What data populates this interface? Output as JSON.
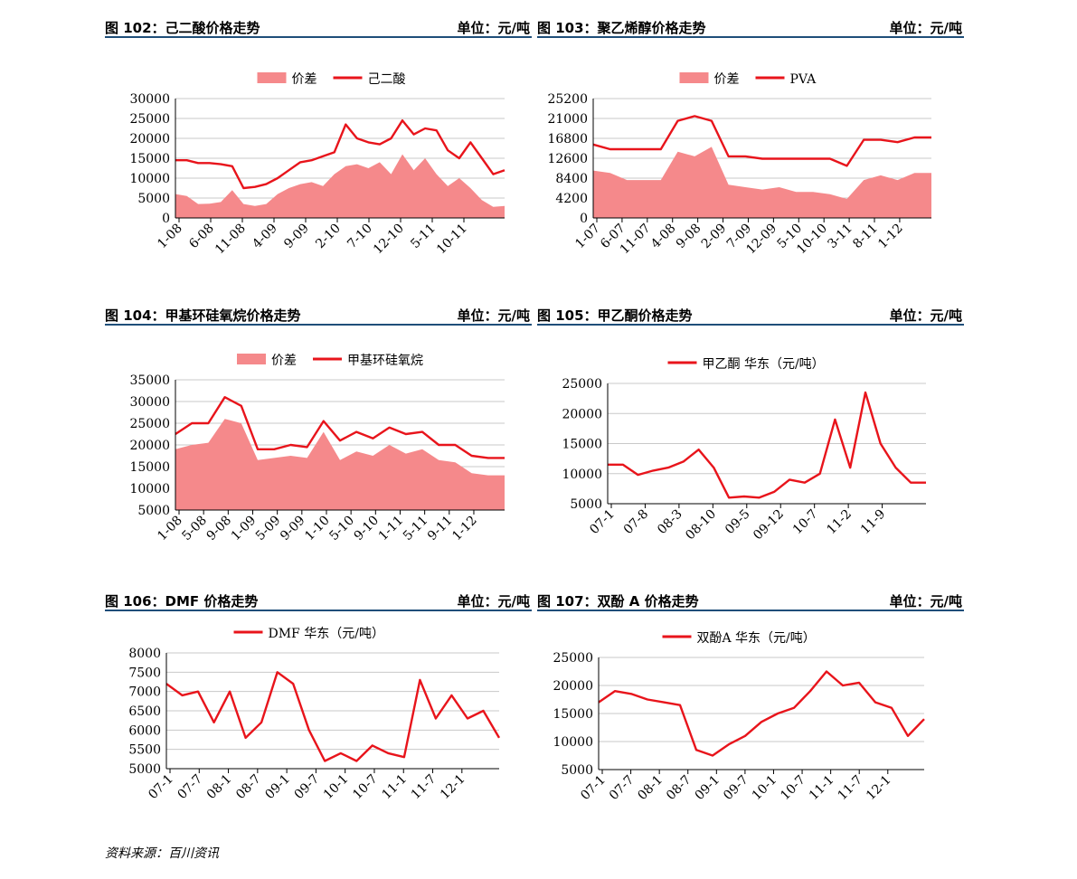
{
  "source": "资料来源：百川资讯",
  "colors": {
    "line": "#e8141b",
    "area": "#f5898b",
    "grid": "#c8c8c8",
    "rule": "#1f4e79"
  },
  "panels": [
    {
      "title": "图 102：己二酸价格走势",
      "unit": "单位：元/吨",
      "chart_data": {
        "type": "area",
        "legend": [
          "价差",
          "己二酸"
        ],
        "ylim": [
          0,
          30000
        ],
        "yticks": [
          0,
          5000,
          10000,
          15000,
          20000,
          25000,
          30000
        ],
        "xticks": [
          "1-08",
          "6-08",
          "11-08",
          "4-09",
          "9-09",
          "2-10",
          "7-10",
          "12-10",
          "5-11",
          "10-11"
        ],
        "series": [
          {
            "name": "价差",
            "kind": "area",
            "values": [
              6000,
              5500,
              3500,
              3600,
              4000,
              7000,
              3500,
              3000,
              3500,
              6000,
              7500,
              8500,
              9000,
              8000,
              11000,
              13000,
              13500,
              12500,
              14000,
              11000,
              16000,
              12000,
              15000,
              11000,
              8000,
              10000,
              7500,
              4500,
              2800,
              3000
            ]
          },
          {
            "name": "己二酸",
            "kind": "line",
            "values": [
              14500,
              14500,
              13800,
              13800,
              13500,
              13000,
              7500,
              7800,
              8500,
              10000,
              12000,
              14000,
              14500,
              15500,
              16500,
              23500,
              20000,
              19000,
              18500,
              20000,
              24500,
              21000,
              22500,
              22000,
              17000,
              15000,
              19000,
              15000,
              11000,
              12000
            ]
          }
        ]
      }
    },
    {
      "title": "图 103：聚乙烯醇价格走势",
      "unit": "单位：元/吨",
      "chart_data": {
        "type": "area",
        "legend": [
          "价差",
          "PVA"
        ],
        "ylim": [
          0,
          25200
        ],
        "yticks": [
          0,
          4200,
          8400,
          12600,
          16800,
          21000,
          25200
        ],
        "xticks": [
          "1-07",
          "6-07",
          "11-07",
          "4-08",
          "9-08",
          "2-09",
          "7-09",
          "12-09",
          "5-10",
          "10-10",
          "3-11",
          "8-11",
          "1-12"
        ],
        "series": [
          {
            "name": "价差",
            "kind": "area",
            "values": [
              10000,
              9500,
              8000,
              8000,
              8000,
              14000,
              13000,
              15000,
              7000,
              6500,
              6000,
              6500,
              5500,
              5500,
              5000,
              4000,
              8000,
              9000,
              8000,
              9500,
              9500
            ]
          },
          {
            "name": "PVA",
            "kind": "line",
            "values": [
              15500,
              14500,
              14500,
              14500,
              14500,
              20500,
              21500,
              20500,
              13000,
              13000,
              12500,
              12500,
              12500,
              12500,
              12500,
              11000,
              16500,
              16500,
              16000,
              17000,
              17000
            ]
          }
        ]
      }
    },
    {
      "title": "图 104：甲基环硅氧烷价格走势",
      "unit": "单位：元/吨",
      "chart_data": {
        "type": "area",
        "legend": [
          "价差",
          "甲基环硅氧烷"
        ],
        "ylim": [
          5000,
          35000
        ],
        "yticks": [
          5000,
          10000,
          15000,
          20000,
          25000,
          30000,
          35000
        ],
        "xticks": [
          "1-08",
          "5-08",
          "9-08",
          "1-09",
          "5-09",
          "9-09",
          "1-10",
          "5-10",
          "9-10",
          "1-11",
          "5-11",
          "9-11",
          "1-12"
        ],
        "series": [
          {
            "name": "价差",
            "kind": "area",
            "values": [
              19000,
              20000,
              20500,
              26000,
              25000,
              16500,
              17000,
              17500,
              17000,
              23000,
              16500,
              18500,
              17500,
              20000,
              18000,
              19000,
              16500,
              16000,
              13500,
              13000,
              13000
            ]
          },
          {
            "name": "甲基环硅氧烷",
            "kind": "line",
            "values": [
              22500,
              25000,
              25000,
              31000,
              29000,
              19000,
              19000,
              20000,
              19500,
              25500,
              21000,
              23000,
              21500,
              24000,
              22500,
              23000,
              20000,
              20000,
              17500,
              17000,
              17000
            ]
          }
        ]
      }
    },
    {
      "title": "图 105：甲乙酮价格走势",
      "unit": "单位：元/吨",
      "chart_data": {
        "type": "line",
        "legend": [
          "甲乙酮 华东（元/吨）"
        ],
        "ylim": [
          5000,
          25000
        ],
        "yticks": [
          5000,
          10000,
          15000,
          20000,
          25000
        ],
        "xticks": [
          "07-1",
          "07-8",
          "08-3",
          "08-10",
          "09-5",
          "09-12",
          "10-7",
          "11-2",
          "11-9"
        ],
        "series": [
          {
            "name": "甲乙酮 华东（元/吨）",
            "kind": "line",
            "values": [
              11500,
              11500,
              9800,
              10500,
              11000,
              12000,
              14000,
              11000,
              6000,
              6200,
              6000,
              7000,
              9000,
              8500,
              10000,
              19000,
              11000,
              23500,
              15000,
              11000,
              8500,
              8500
            ]
          }
        ]
      }
    },
    {
      "title": "图 106：DMF 价格走势",
      "unit": "单位：元/吨",
      "chart_data": {
        "type": "line",
        "legend": [
          "DMF 华东（元/吨）"
        ],
        "ylim": [
          5000,
          8000
        ],
        "yticks": [
          5000,
          5500,
          6000,
          6500,
          7000,
          7500,
          8000
        ],
        "xticks": [
          "07-1",
          "07-7",
          "08-1",
          "08-7",
          "09-1",
          "09-7",
          "10-1",
          "10-7",
          "11-1",
          "11-7",
          "12-1"
        ],
        "series": [
          {
            "name": "DMF 华东（元/吨）",
            "kind": "line",
            "values": [
              7200,
              6900,
              7000,
              6200,
              7000,
              5800,
              6200,
              7500,
              7200,
              6000,
              5200,
              5400,
              5200,
              5600,
              5400,
              5300,
              7300,
              6300,
              6900,
              6300,
              6500,
              5800
            ]
          }
        ]
      }
    },
    {
      "title": "图 107：双酚 A 价格走势",
      "unit": "单位：元/吨",
      "chart_data": {
        "type": "line",
        "legend": [
          "双酚A 华东（元/吨）"
        ],
        "ylim": [
          5000,
          25000
        ],
        "yticks": [
          5000,
          10000,
          15000,
          20000,
          25000
        ],
        "xticks": [
          "07-1",
          "07-7",
          "08-1",
          "08-7",
          "09-1",
          "09-7",
          "10-1",
          "10-7",
          "11-1",
          "11-7",
          "12-1"
        ],
        "series": [
          {
            "name": "双酚A 华东（元/吨）",
            "kind": "line",
            "values": [
              17000,
              19000,
              18500,
              17500,
              17000,
              16500,
              8500,
              7500,
              9500,
              11000,
              13500,
              15000,
              16000,
              19000,
              22500,
              20000,
              20500,
              17000,
              16000,
              11000,
              14000
            ]
          }
        ]
      }
    }
  ]
}
